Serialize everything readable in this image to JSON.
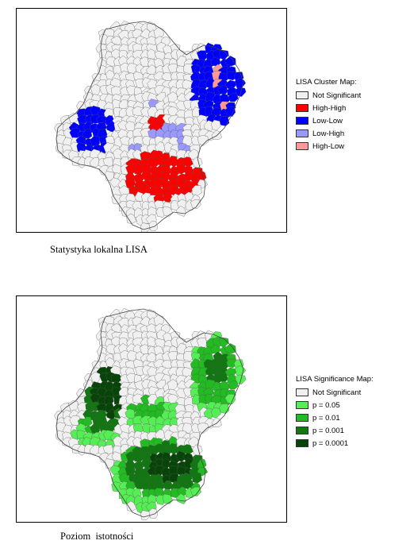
{
  "panels": [
    {
      "legend_title": "LISA Cluster Map:",
      "legend": [
        {
          "label": "Not Significant",
          "color": "#f0f0f0"
        },
        {
          "label": "High-High",
          "color": "#ff0000"
        },
        {
          "label": "Low-Low",
          "color": "#0000ff"
        },
        {
          "label": "Low-High",
          "color": "#9999ff"
        },
        {
          "label": "High-Low",
          "color": "#ff9999"
        }
      ],
      "caption": "Statystyka lokalna LISA"
    },
    {
      "legend_title": "LISA Significance Map:",
      "legend": [
        {
          "label": "Not Significant",
          "color": "#f0f0f0"
        },
        {
          "label": "p = 0.05",
          "color": "#55ee55"
        },
        {
          "label": "p = 0.01",
          "color": "#22bb22"
        },
        {
          "label": "p = 0.001",
          "color": "#117711"
        },
        {
          "label": "p = 0.0001",
          "color": "#074407"
        }
      ],
      "caption": "Poziom  istotności"
    }
  ]
}
